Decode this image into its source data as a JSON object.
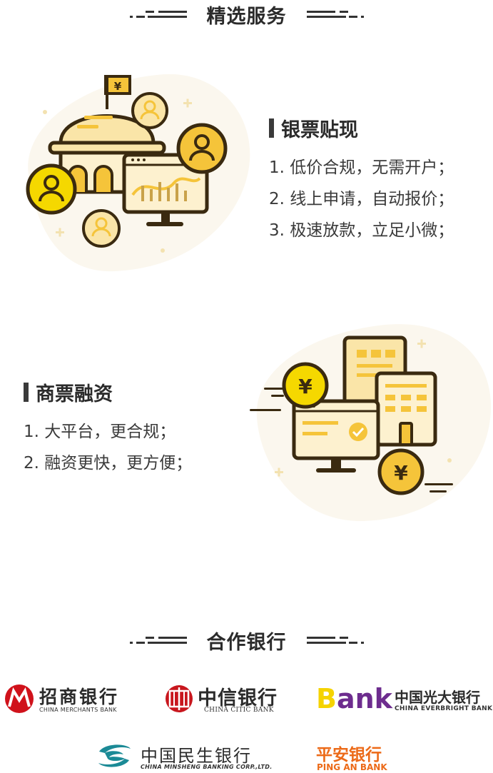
{
  "sections": {
    "services_title": "精选服务",
    "partners_title": "合作银行"
  },
  "bill_discount": {
    "title": "银票贴现",
    "lines": [
      "1. 低价合规，无需开户；",
      "2. 线上申请，自动报价；",
      "3. 极速放款，立足小微；"
    ]
  },
  "commercial_bill": {
    "title": "商票融资",
    "lines": [
      "1. 大平台，更合规；",
      "2. 融资更快，更方便；"
    ]
  },
  "illustration": {
    "flag_symbol": "¥",
    "coin_symbol": "¥"
  },
  "banks": {
    "cmb": {
      "cn": "招商银行",
      "en": "CHINA MERCHANTS BANK"
    },
    "citic": {
      "cn": "中信银行",
      "en": "CHINA CITIC BANK"
    },
    "ceb": {
      "mark": "Bank",
      "cn": "中国光大银行",
      "en": "CHINA EVERBRIGHT BANK"
    },
    "cmbc": {
      "cn": "中国民生银行",
      "en": "CHINA MINSHENG BANKING CORP.,LTD."
    },
    "pingan": {
      "cn": "平安银行",
      "en": "PING AN BANK"
    }
  },
  "colors": {
    "accent_yellow": "#f5c43a",
    "light_yellow": "#fdf1cf",
    "cream": "#fbf7ee",
    "outline": "#3a2a10",
    "cmb_red": "#d0121b",
    "citic_red": "#c8161d",
    "ceb_purple": "#6d2c8e",
    "ceb_yellow": "#f5d300",
    "cmbc_teal": "#1b8a96",
    "pingan_orange": "#ec6a18"
  }
}
